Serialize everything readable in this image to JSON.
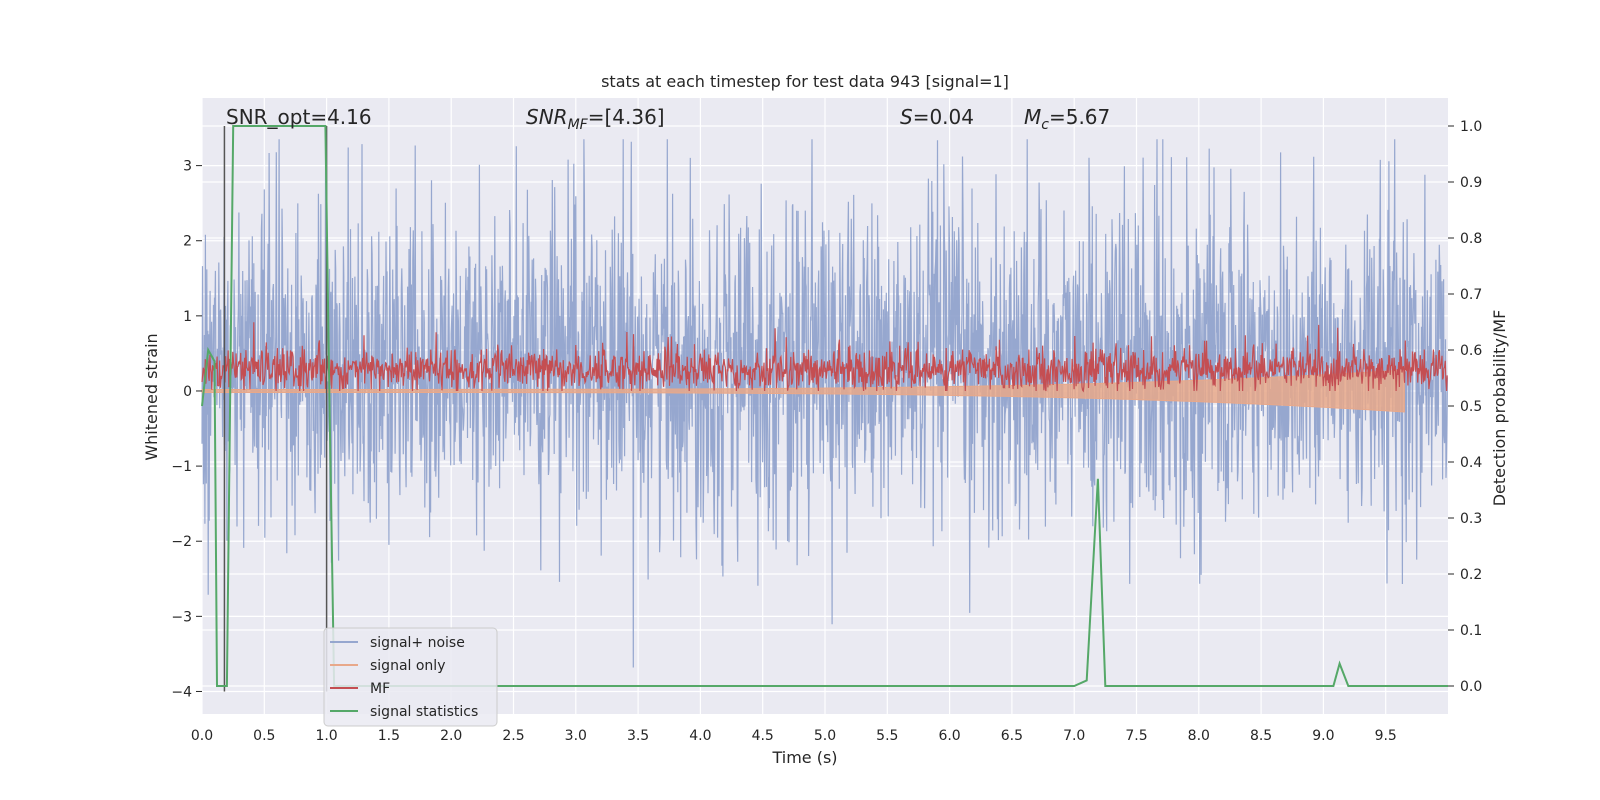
{
  "chart_data": {
    "type": "line",
    "title": "stats at each timestep for test data 943 [signal=1]",
    "xlabel": "Time (s)",
    "ylabel_left": "Whitened strain",
    "ylabel_right": "Detection probability/MF",
    "xlim": [
      0,
      10
    ],
    "ylim_left": [
      -4.3,
      3.9
    ],
    "ylim_right": [
      -0.05,
      1.05
    ],
    "x_ticks": [
      "0.0",
      "0.5",
      "1.0",
      "1.5",
      "2.0",
      "2.5",
      "3.0",
      "3.5",
      "4.0",
      "4.5",
      "5.0",
      "5.5",
      "6.0",
      "6.5",
      "7.0",
      "7.5",
      "8.0",
      "8.5",
      "9.0",
      "9.5"
    ],
    "y_ticks_left": [
      "3",
      "2",
      "1",
      "0",
      "−1",
      "−2",
      "−3",
      "−4"
    ],
    "y_ticks_right": [
      "1.0",
      "0.9",
      "0.8",
      "0.7",
      "0.6",
      "0.5",
      "0.4",
      "0.3",
      "0.2",
      "0.1",
      "0.0"
    ],
    "grid": true,
    "legend_position": "lower-left",
    "annotations": {
      "snr_opt": "SNR_opt=4.16",
      "snr_mf_sym": "SNR",
      "snr_mf_sub": "MF",
      "snr_mf_val": "=[4.36]",
      "s_sym": "S",
      "s_val": "=0.04",
      "mc_sym": "M",
      "mc_sub": "c",
      "mc_val": "=5.67"
    },
    "vertical_markers_x": [
      0.18,
      1.0
    ],
    "series": [
      {
        "name": "signal+ noise",
        "color": "#8da0cb",
        "axis": "left",
        "note": "noise band approx within [-4, 3.4]"
      },
      {
        "name": "signal only",
        "color": "#e8a88a",
        "axis": "left"
      },
      {
        "name": "MF",
        "color": "#c44e52",
        "axis": "left"
      },
      {
        "name": "signal statistics",
        "color": "#55a868",
        "axis": "right",
        "x": [
          0.0,
          0.05,
          0.1,
          0.12,
          0.2,
          0.25,
          0.3,
          0.9,
          0.99,
          1.02,
          1.06,
          1.1,
          2.0,
          4.0,
          6.0,
          7.0,
          7.1,
          7.19,
          7.25,
          7.3,
          8.0,
          9.0,
          9.08,
          9.13,
          9.2,
          9.5,
          10.0
        ],
        "values": [
          0.5,
          0.6,
          0.58,
          0.0,
          0.0,
          1.0,
          1.0,
          1.0,
          1.0,
          0.55,
          0.0,
          0.0,
          0.0,
          0.0,
          0.0,
          0.0,
          0.01,
          0.37,
          0.0,
          0.0,
          0.0,
          0.0,
          0.0,
          0.04,
          0.0,
          0.0,
          0.0
        ]
      }
    ]
  }
}
